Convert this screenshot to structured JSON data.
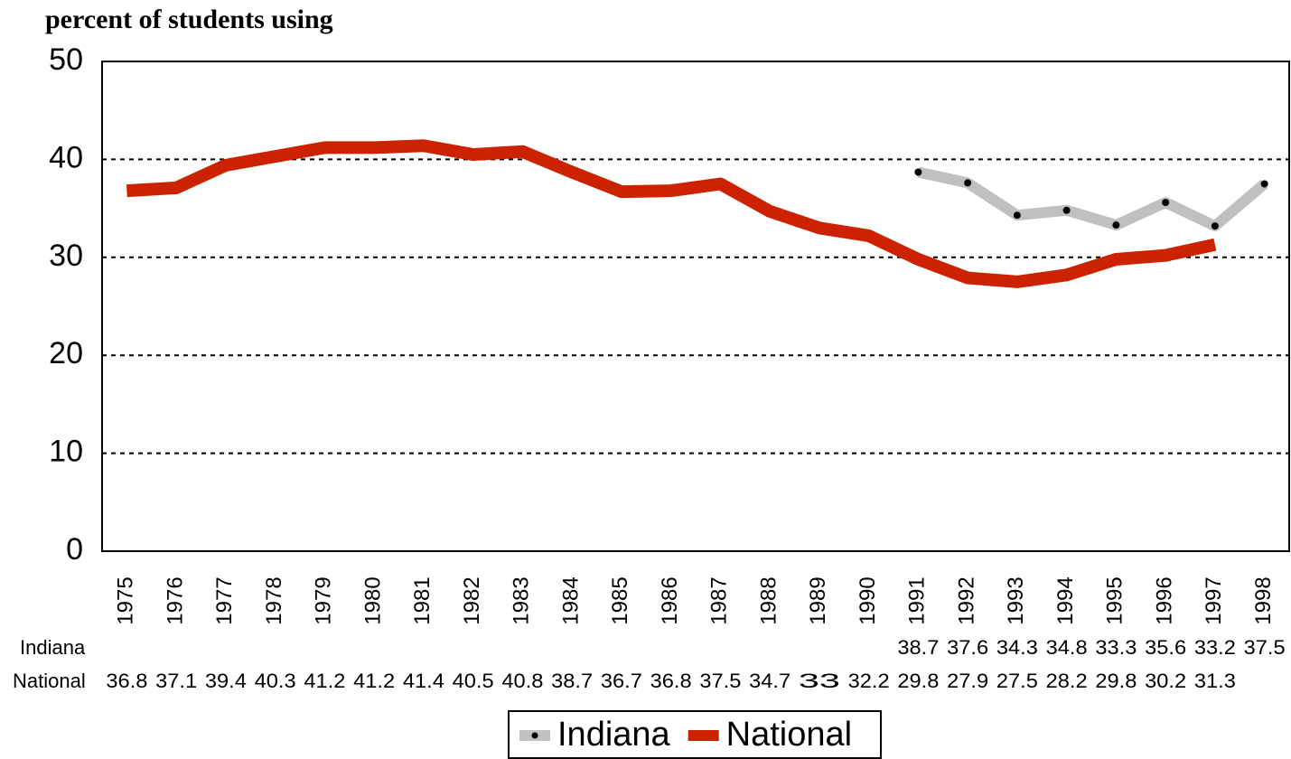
{
  "chart_data": {
    "type": "line",
    "y_label": "percent of students using",
    "categories": [
      "1975",
      "1976",
      "1977",
      "1978",
      "1979",
      "1980",
      "1981",
      "1982",
      "1983",
      "1984",
      "1985",
      "1986",
      "1987",
      "1988",
      "1989",
      "1990",
      "1991",
      "1992",
      "1993",
      "1994",
      "1995",
      "1996",
      "1997",
      "1998"
    ],
    "series": [
      {
        "name": "Indiana",
        "color": "#c0c0c0",
        "marker_color": "#000000",
        "values": [
          null,
          null,
          null,
          null,
          null,
          null,
          null,
          null,
          null,
          null,
          null,
          null,
          null,
          null,
          null,
          null,
          38.7,
          37.6,
          34.3,
          34.8,
          33.3,
          35.6,
          33.2,
          37.5
        ]
      },
      {
        "name": "National",
        "color": "#cc2200",
        "values": [
          36.8,
          37.1,
          39.4,
          40.3,
          41.2,
          41.2,
          41.4,
          40.5,
          40.8,
          38.7,
          36.7,
          36.8,
          37.5,
          34.7,
          33,
          32.2,
          29.8,
          27.9,
          27.5,
          28.2,
          29.8,
          30.2,
          31.3,
          null
        ]
      }
    ],
    "ylim": [
      0,
      50
    ],
    "yticks": [
      0,
      10,
      20,
      30,
      40,
      50
    ],
    "grid": true,
    "legend": "bottom"
  }
}
